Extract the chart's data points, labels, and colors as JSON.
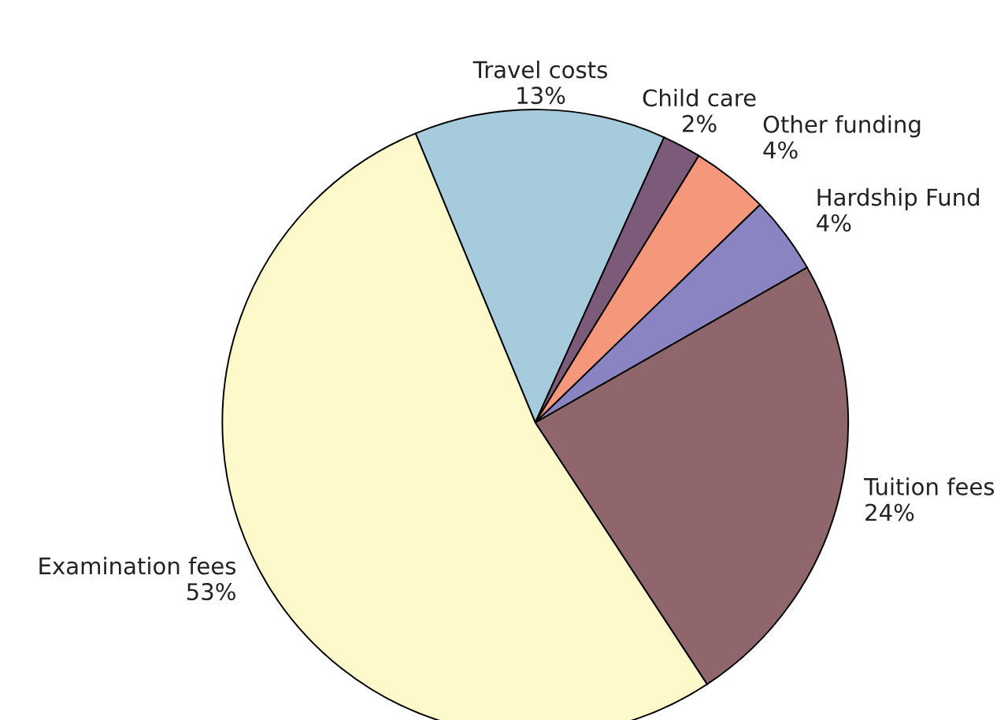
{
  "chart_data": {
    "type": "pie",
    "categories": [
      "Travel costs",
      "Child care",
      "Other funding",
      "Hardship Fund",
      "Tuition fees",
      "Examination fees"
    ],
    "values": [
      13,
      2,
      4,
      4,
      24,
      53
    ],
    "value_labels": [
      "13%",
      "2%",
      "4%",
      "4%",
      "24%",
      "53%"
    ],
    "colors": [
      "#a6cbdc",
      "#7b5a7a",
      "#f4977a",
      "#8b84c2",
      "#8f666b",
      "#fef9cb"
    ],
    "legend": false
  }
}
